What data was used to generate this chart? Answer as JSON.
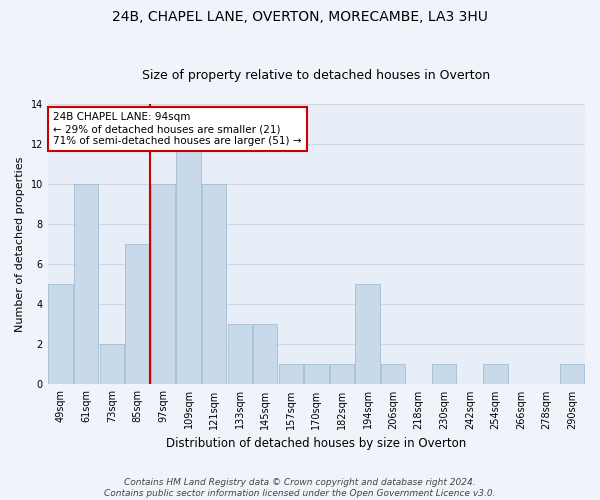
{
  "title1": "24B, CHAPEL LANE, OVERTON, MORECAMBE, LA3 3HU",
  "title2": "Size of property relative to detached houses in Overton",
  "xlabel": "Distribution of detached houses by size in Overton",
  "ylabel": "Number of detached properties",
  "categories": [
    "49sqm",
    "61sqm",
    "73sqm",
    "85sqm",
    "97sqm",
    "109sqm",
    "121sqm",
    "133sqm",
    "145sqm",
    "157sqm",
    "170sqm",
    "182sqm",
    "194sqm",
    "206sqm",
    "218sqm",
    "230sqm",
    "242sqm",
    "254sqm",
    "266sqm",
    "278sqm",
    "290sqm"
  ],
  "values": [
    5,
    10,
    2,
    7,
    10,
    12,
    10,
    3,
    3,
    1,
    1,
    1,
    5,
    1,
    0,
    1,
    0,
    1,
    0,
    0,
    1
  ],
  "bar_color": "#c8d9ea",
  "bar_edge_color": "#9ab4cc",
  "vline_color": "#cc0000",
  "vline_pos": 3.5,
  "annotation_text": "24B CHAPEL LANE: 94sqm\n← 29% of detached houses are smaller (21)\n71% of semi-detached houses are larger (51) →",
  "annotation_box_color": "#ffffff",
  "annotation_box_edge": "#cc0000",
  "ylim": [
    0,
    14
  ],
  "yticks": [
    0,
    2,
    4,
    6,
    8,
    10,
    12,
    14
  ],
  "grid_color": "#d0d8e8",
  "plot_bg_color": "#e8eef8",
  "fig_bg_color": "#f0f4fa",
  "footer": "Contains HM Land Registry data © Crown copyright and database right 2024.\nContains public sector information licensed under the Open Government Licence v3.0.",
  "title1_fontsize": 10,
  "title2_fontsize": 9,
  "xlabel_fontsize": 8.5,
  "ylabel_fontsize": 8,
  "tick_fontsize": 7,
  "annotation_fontsize": 7.5,
  "footer_fontsize": 6.5
}
